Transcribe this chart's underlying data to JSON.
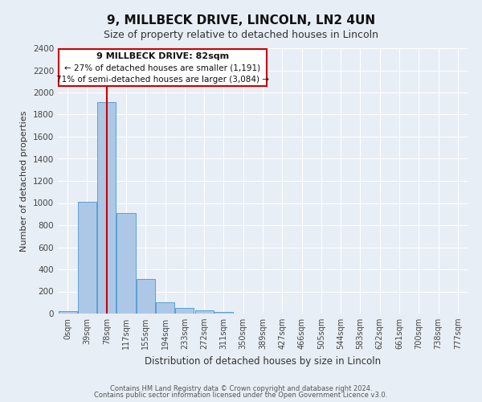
{
  "title": "9, MILLBECK DRIVE, LINCOLN, LN2 4UN",
  "subtitle": "Size of property relative to detached houses in Lincoln",
  "xlabel": "Distribution of detached houses by size in Lincoln",
  "ylabel": "Number of detached properties",
  "bar_color": "#adc8e6",
  "bar_edge_color": "#5a9fd4",
  "background_color": "#e8eef6",
  "grid_color": "#ffffff",
  "categories": [
    "0sqm",
    "39sqm",
    "78sqm",
    "117sqm",
    "155sqm",
    "194sqm",
    "233sqm",
    "272sqm",
    "311sqm",
    "350sqm",
    "389sqm",
    "427sqm",
    "466sqm",
    "505sqm",
    "544sqm",
    "583sqm",
    "622sqm",
    "661sqm",
    "700sqm",
    "738sqm",
    "777sqm"
  ],
  "values": [
    20,
    1010,
    1910,
    910,
    315,
    105,
    50,
    28,
    18,
    0,
    0,
    0,
    0,
    0,
    0,
    0,
    0,
    0,
    0,
    0,
    0
  ],
  "ylim": [
    0,
    2400
  ],
  "yticks": [
    0,
    200,
    400,
    600,
    800,
    1000,
    1200,
    1400,
    1600,
    1800,
    2000,
    2200,
    2400
  ],
  "property_line_x": 2,
  "annotation_line1": "9 MILLBECK DRIVE: 82sqm",
  "annotation_line2": "← 27% of detached houses are smaller (1,191)",
  "annotation_line3": "71% of semi-detached houses are larger (3,084) →",
  "annotation_box_color": "#ffffff",
  "annotation_border_color": "#cc0000",
  "red_line_color": "#cc0000",
  "footer1": "Contains HM Land Registry data © Crown copyright and database right 2024.",
  "footer2": "Contains public sector information licensed under the Open Government Licence v3.0."
}
